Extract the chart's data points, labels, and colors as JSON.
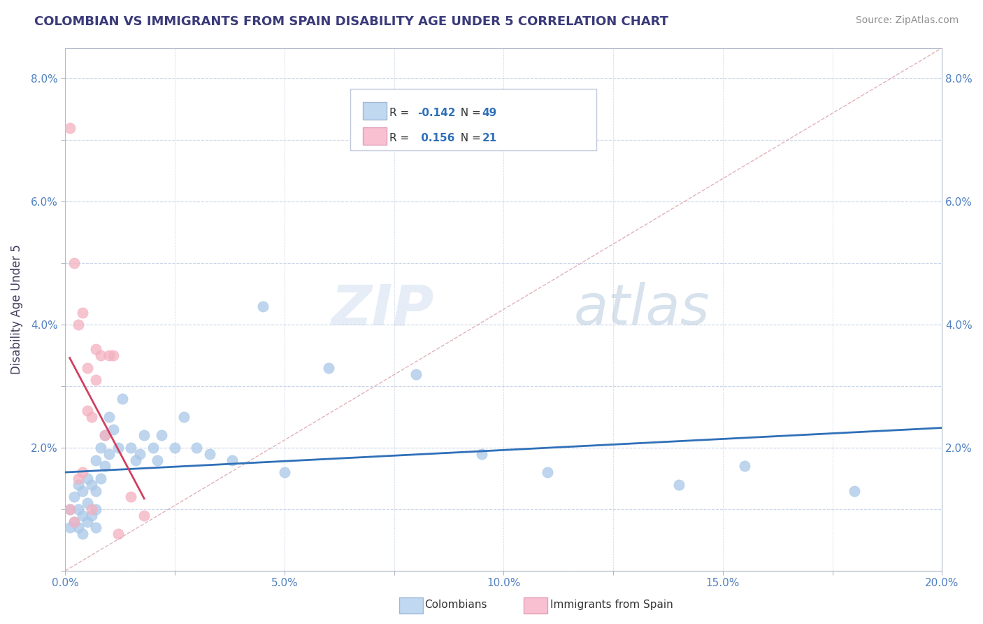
{
  "title": "COLOMBIAN VS IMMIGRANTS FROM SPAIN DISABILITY AGE UNDER 5 CORRELATION CHART",
  "source": "Source: ZipAtlas.com",
  "ylabel": "Disability Age Under 5",
  "xlim": [
    0.0,
    0.2
  ],
  "ylim": [
    0.0,
    0.085
  ],
  "xticks": [
    0.0,
    0.025,
    0.05,
    0.075,
    0.1,
    0.125,
    0.15,
    0.175,
    0.2
  ],
  "xticklabels": [
    "0.0%",
    "",
    "5.0%",
    "",
    "10.0%",
    "",
    "15.0%",
    "",
    "20.0%"
  ],
  "yticks": [
    0.0,
    0.01,
    0.02,
    0.03,
    0.04,
    0.05,
    0.06,
    0.07,
    0.08
  ],
  "yticklabels": [
    "",
    "",
    "2.0%",
    "",
    "4.0%",
    "",
    "6.0%",
    "",
    "8.0%"
  ],
  "colombian_color": "#a8c8e8",
  "spain_color": "#f4b0c0",
  "colombian_line_color": "#3070b8",
  "spain_line_color": "#d04060",
  "diagonal_color": "#d8a0a8",
  "r_colombian": -0.142,
  "n_colombian": 49,
  "r_spain": 0.156,
  "n_spain": 21,
  "watermark_zip": "ZIP",
  "watermark_atlas": "atlas",
  "colombians_x": [
    0.001,
    0.001,
    0.002,
    0.002,
    0.003,
    0.003,
    0.003,
    0.004,
    0.004,
    0.004,
    0.005,
    0.005,
    0.005,
    0.006,
    0.006,
    0.007,
    0.007,
    0.007,
    0.007,
    0.008,
    0.008,
    0.009,
    0.009,
    0.01,
    0.01,
    0.011,
    0.012,
    0.013,
    0.015,
    0.016,
    0.017,
    0.018,
    0.02,
    0.021,
    0.022,
    0.025,
    0.027,
    0.03,
    0.033,
    0.038,
    0.045,
    0.05,
    0.06,
    0.08,
    0.095,
    0.11,
    0.14,
    0.155,
    0.18
  ],
  "colombians_y": [
    0.01,
    0.007,
    0.012,
    0.008,
    0.014,
    0.01,
    0.007,
    0.013,
    0.009,
    0.006,
    0.015,
    0.011,
    0.008,
    0.014,
    0.009,
    0.018,
    0.013,
    0.01,
    0.007,
    0.02,
    0.015,
    0.022,
    0.017,
    0.025,
    0.019,
    0.023,
    0.02,
    0.028,
    0.02,
    0.018,
    0.019,
    0.022,
    0.02,
    0.018,
    0.022,
    0.02,
    0.025,
    0.02,
    0.019,
    0.018,
    0.043,
    0.016,
    0.033,
    0.032,
    0.019,
    0.016,
    0.014,
    0.017,
    0.013
  ],
  "spain_x": [
    0.001,
    0.001,
    0.002,
    0.002,
    0.003,
    0.003,
    0.004,
    0.004,
    0.005,
    0.005,
    0.006,
    0.006,
    0.007,
    0.007,
    0.008,
    0.009,
    0.01,
    0.011,
    0.012,
    0.015,
    0.018
  ],
  "spain_y": [
    0.072,
    0.01,
    0.05,
    0.008,
    0.04,
    0.015,
    0.042,
    0.016,
    0.033,
    0.026,
    0.01,
    0.025,
    0.036,
    0.031,
    0.035,
    0.022,
    0.035,
    0.035,
    0.006,
    0.012,
    0.009
  ]
}
